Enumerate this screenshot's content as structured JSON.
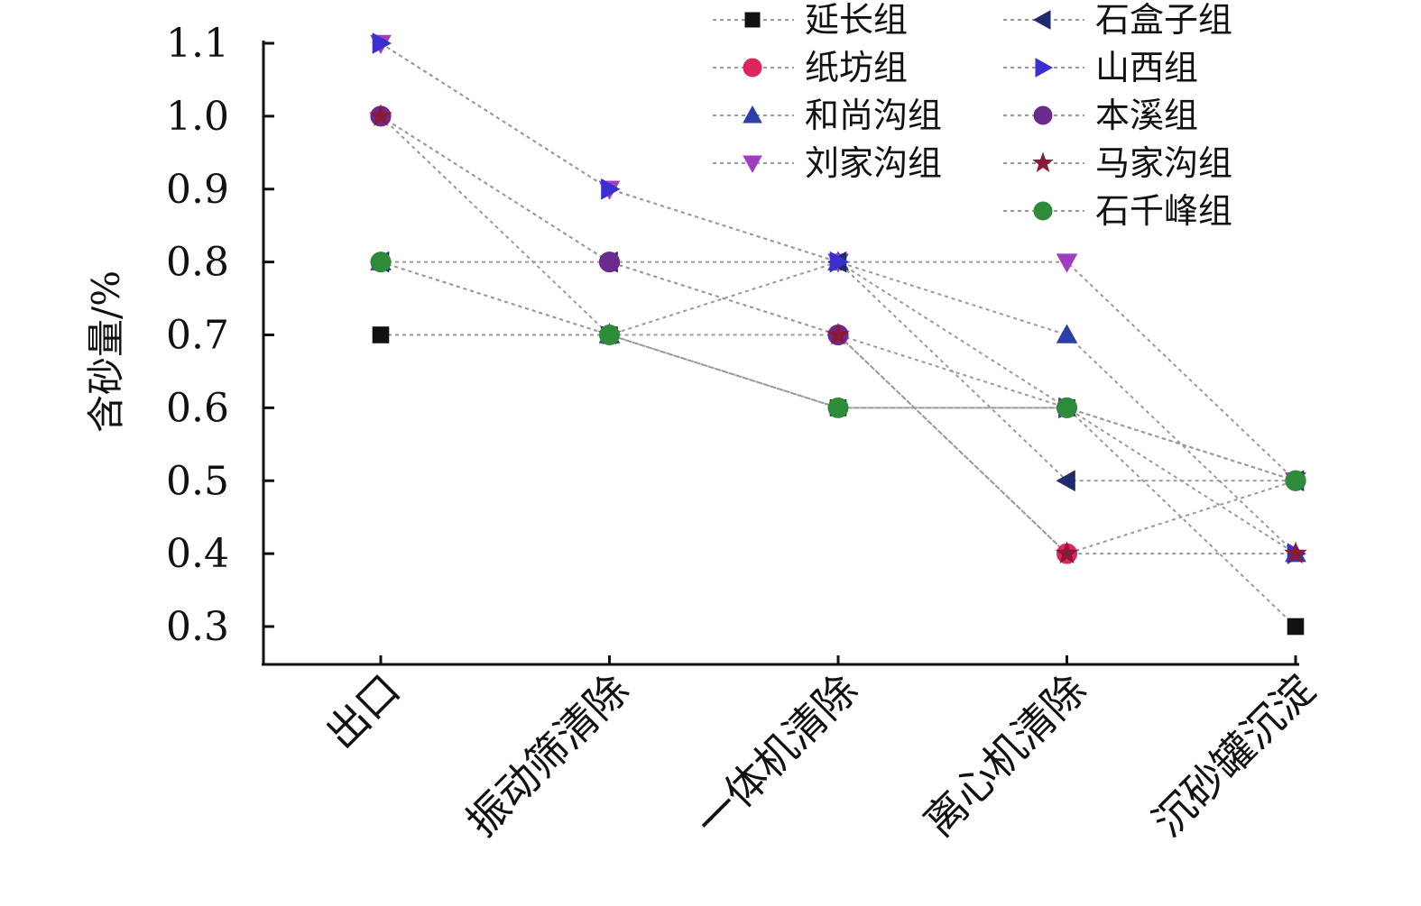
{
  "chart_data": {
    "type": "line",
    "title": "",
    "xlabel": "",
    "ylabel": "含砂量/%",
    "ylim": [
      0.25,
      1.1
    ],
    "yticks": [
      1.1,
      1.0,
      0.9,
      0.8,
      0.7,
      0.6,
      0.5,
      0.4,
      0.3
    ],
    "categories": [
      "出口",
      "振动筛清除",
      "一体机清除",
      "离心机清除",
      "沉砂罐沉淀"
    ],
    "grid": false,
    "legend_position": "top-right",
    "series": [
      {
        "name": "延长组",
        "color": "#111111",
        "marker": "square",
        "values": [
          0.7,
          0.7,
          0.6,
          0.6,
          0.3
        ]
      },
      {
        "name": "纸坊组",
        "color": "#e0245e",
        "marker": "circle",
        "values": [
          1.0,
          0.8,
          0.7,
          0.4,
          0.5
        ]
      },
      {
        "name": "和尚沟组",
        "color": "#2b3fa8",
        "marker": "triangle-up",
        "values": [
          0.8,
          0.7,
          0.8,
          0.7,
          0.4
        ]
      },
      {
        "name": "刘家沟组",
        "color": "#a23cc0",
        "marker": "triangle-down",
        "values": [
          1.1,
          0.9,
          0.8,
          0.8,
          0.5
        ]
      },
      {
        "name": "石盒子组",
        "color": "#1f2c6b",
        "marker": "triangle-left",
        "values": [
          0.8,
          0.8,
          0.8,
          0.5,
          0.5
        ]
      },
      {
        "name": "山西组",
        "color": "#3a2fd0",
        "marker": "triangle-right",
        "values": [
          1.1,
          0.9,
          0.8,
          0.6,
          0.4
        ]
      },
      {
        "name": "本溪组",
        "color": "#6a2a90",
        "marker": "circle",
        "values": [
          1.0,
          0.8,
          0.7,
          0.6,
          0.5
        ]
      },
      {
        "name": "马家沟组",
        "color": "#8a1a3a",
        "marker": "star",
        "values": [
          1.0,
          0.7,
          0.7,
          0.4,
          0.4
        ]
      },
      {
        "name": "石千峰组",
        "color": "#2e8b3a",
        "marker": "circle",
        "values": [
          0.8,
          0.7,
          0.6,
          0.6,
          0.5
        ]
      }
    ]
  }
}
